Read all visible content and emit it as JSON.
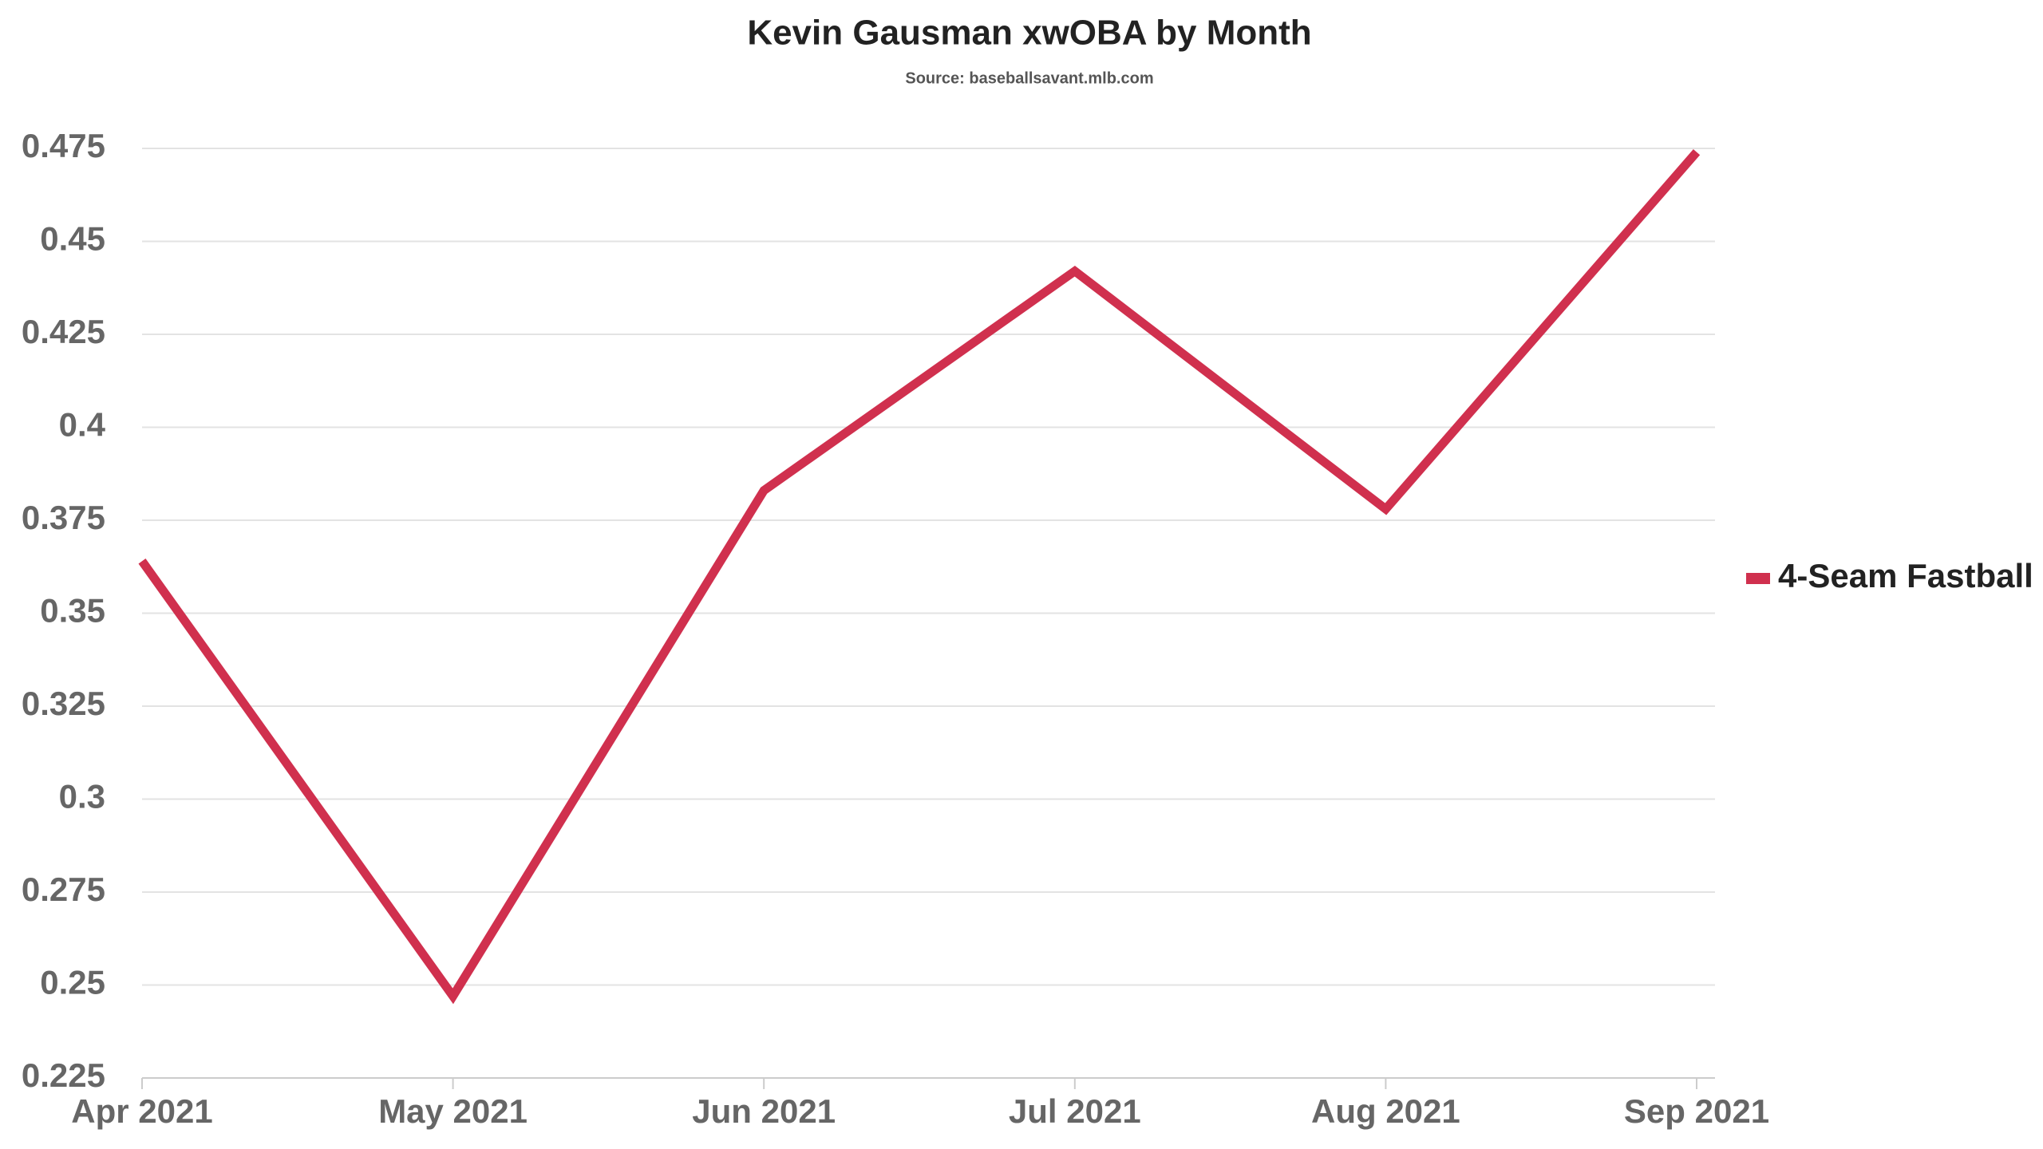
{
  "chart_data": {
    "type": "line",
    "title": "Kevin Gausman xwOBA by Month",
    "subtitle": "Source: baseballsavant.mlb.com",
    "categories": [
      "Apr 2021",
      "May 2021",
      "Jun 2021",
      "Jul 2021",
      "Aug 2021",
      "Sep 2021"
    ],
    "series": [
      {
        "name": "4-Seam Fastball",
        "color": "#d0304e",
        "values": [
          0.364,
          0.247,
          0.383,
          0.442,
          0.378,
          0.474
        ]
      }
    ],
    "ylim": [
      0.225,
      0.475
    ],
    "yticks": [
      0.225,
      0.25,
      0.275,
      0.3,
      0.325,
      0.35,
      0.375,
      0.4,
      0.425,
      0.45,
      0.475
    ],
    "grid": true,
    "legend": "right"
  }
}
